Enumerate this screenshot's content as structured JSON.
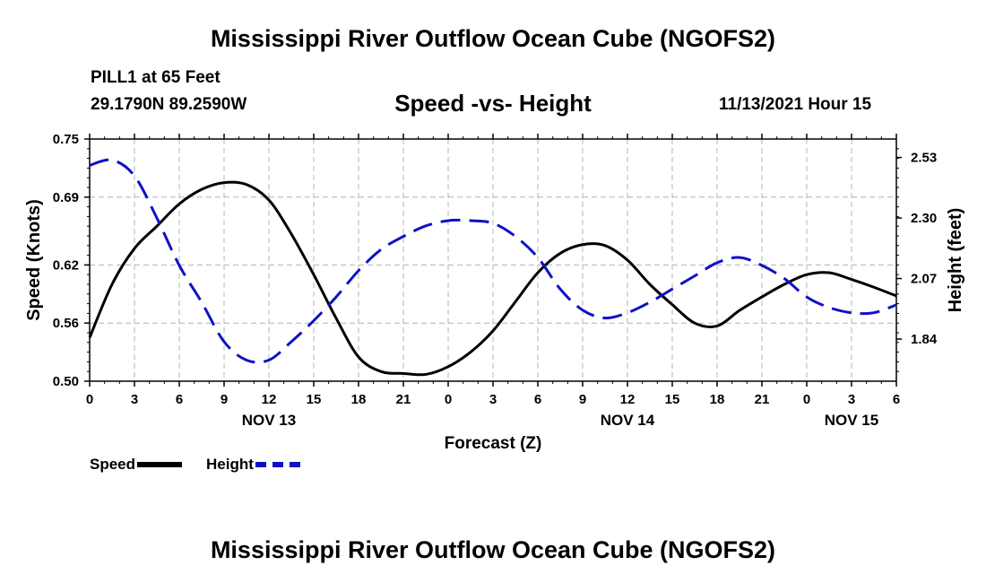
{
  "header": {
    "title": "Mississippi River Outflow Ocean Cube (NGOFS2)",
    "station": "PILL1 at 65 Feet",
    "coords": "29.1790N  89.2590W",
    "subtitle": "Speed -vs- Height",
    "datetime": "11/13/2021 Hour 15"
  },
  "footer": {
    "title": "Mississippi River Outflow Ocean Cube (NGOFS2)"
  },
  "legend": {
    "speed_label": "Speed",
    "height_label": "Height",
    "speed_color": "#000000",
    "height_color": "#1010c8"
  },
  "chart_data": {
    "type": "line",
    "xlabel": "Forecast (Z)",
    "ylabel": "Speed (Knots)",
    "y2label": "Height (feet)",
    "xlim": [
      0,
      54
    ],
    "ylim": [
      0.5,
      0.75
    ],
    "y2lim": [
      1.68,
      2.6
    ],
    "x_ticks": [
      0,
      3,
      6,
      9,
      12,
      15,
      18,
      21,
      24,
      27,
      30,
      33,
      36,
      39,
      42,
      45,
      48,
      51,
      54
    ],
    "x_tick_labels": [
      "0",
      "3",
      "6",
      "9",
      "12",
      "15",
      "18",
      "21",
      "0",
      "3",
      "6",
      "9",
      "12",
      "15",
      "18",
      "21",
      "0",
      "3",
      "6"
    ],
    "y_ticks": [
      0.5,
      0.56,
      0.62,
      0.69,
      0.75
    ],
    "y_tick_labels": [
      "0.50",
      "0.56",
      "0.62",
      "0.69",
      "0.75"
    ],
    "y2_ticks": [
      1.84,
      2.07,
      2.3,
      2.53
    ],
    "y2_tick_labels": [
      "1.84",
      "2.07",
      "2.30",
      "2.53"
    ],
    "date_labels": [
      {
        "x": 12,
        "label": "NOV 13"
      },
      {
        "x": 36,
        "label": "NOV 14"
      },
      {
        "x": 51,
        "label": "NOV 15"
      }
    ],
    "grid": true,
    "series": [
      {
        "name": "Speed",
        "axis": "left",
        "color": "#000000",
        "dash": "solid",
        "x": [
          0,
          1.5,
          3,
          4.5,
          6,
          7.5,
          9,
          10.5,
          12,
          13.5,
          15,
          16.5,
          18,
          19.5,
          21,
          22.5,
          24,
          25.5,
          27,
          28.5,
          30,
          31.5,
          33,
          34.5,
          36,
          37.5,
          39,
          40.5,
          42,
          43.5,
          45,
          46.5,
          48,
          49.5,
          51,
          52.5,
          54
        ],
        "values": [
          0.545,
          0.6,
          0.637,
          0.66,
          0.683,
          0.698,
          0.705,
          0.703,
          0.687,
          0.652,
          0.61,
          0.565,
          0.525,
          0.51,
          0.508,
          0.507,
          0.515,
          0.53,
          0.552,
          0.582,
          0.612,
          0.632,
          0.641,
          0.64,
          0.625,
          0.6,
          0.579,
          0.56,
          0.557,
          0.573,
          0.587,
          0.6,
          0.61,
          0.612,
          0.605,
          0.597,
          0.588
        ]
      },
      {
        "name": "Height",
        "axis": "right",
        "color": "#1010c8",
        "dash": "dashed",
        "x": [
          0,
          1.5,
          3,
          4.5,
          6,
          7.5,
          9,
          10.5,
          12,
          13.5,
          15,
          16.5,
          18,
          19.5,
          21,
          22.5,
          24,
          25.5,
          27,
          28.5,
          30,
          31.5,
          33,
          34.5,
          36,
          37.5,
          39,
          40.5,
          42,
          43.5,
          45,
          46.5,
          48,
          49.5,
          51,
          52.5,
          54
        ],
        "values": [
          2.5,
          2.52,
          2.46,
          2.3,
          2.12,
          1.98,
          1.83,
          1.76,
          1.76,
          1.83,
          1.91,
          2.0,
          2.1,
          2.18,
          2.23,
          2.27,
          2.29,
          2.29,
          2.28,
          2.23,
          2.15,
          2.03,
          1.95,
          1.92,
          1.94,
          1.98,
          2.03,
          2.08,
          2.13,
          2.15,
          2.12,
          2.07,
          2.0,
          1.96,
          1.94,
          1.94,
          1.97
        ]
      }
    ]
  }
}
